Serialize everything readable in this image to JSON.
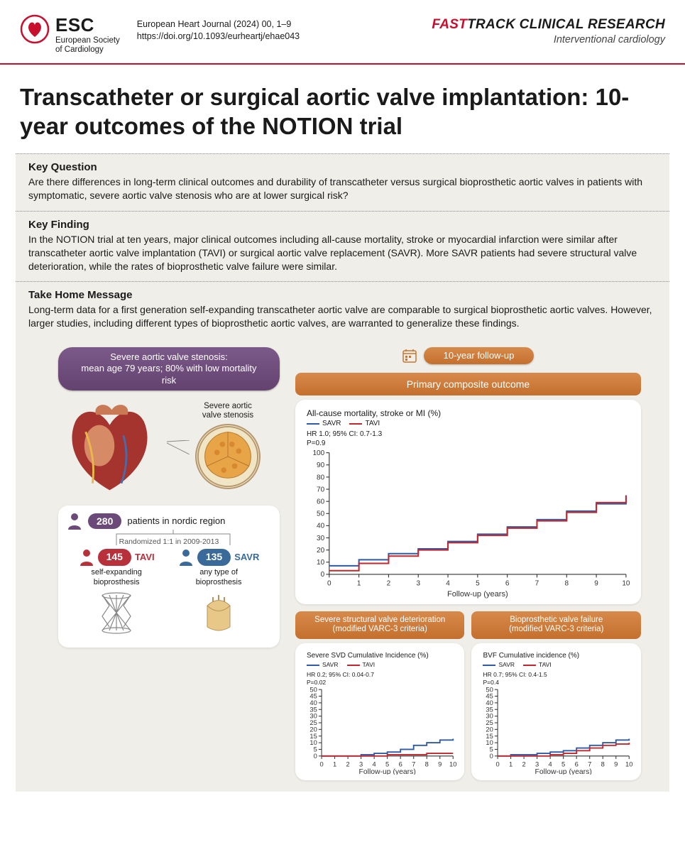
{
  "header": {
    "logo_abbrev": "ESC",
    "logo_sub1": "European Society",
    "logo_sub2": "of Cardiology",
    "journal": "European Heart Journal (2024) 00, 1–9",
    "doi": "https://doi.org/10.1093/eurheartj/ehae043",
    "fasttrack_fast": "FAST",
    "fasttrack_rest": "TRACK CLINICAL RESEARCH",
    "section": "Interventional cardiology"
  },
  "title": "Transcatheter or surgical aortic valve implantation: 10-year outcomes of the NOTION trial",
  "key_question": {
    "heading": "Key Question",
    "text": "Are there differences in long-term clinical outcomes and durability of transcatheter versus surgical bioprosthetic aortic valves in patients with symptomatic, severe aortic valve stenosis who are at lower surgical risk?"
  },
  "key_finding": {
    "heading": "Key Finding",
    "text": "In the NOTION trial at ten years, major clinical outcomes including all-cause mortality, stroke or myocardial infarction were similar after transcatheter aortic valve implantation (TAVI) or surgical aortic valve replacement (SAVR). More SAVR patients had severe structural valve deterioration, while the rates of bioprosthetic valve failure were similar."
  },
  "take_home": {
    "heading": "Take Home Message",
    "text": "Long-term data for a first generation self-expanding transcatheter aortic valve are comparable to surgical bioprosthetic aortic valves. However, larger studies, including different types of bioprosthetic aortic valves, are warranted to generalize these findings."
  },
  "infographic": {
    "population_pill": "Severe aortic valve stenosis:\nmean age 79 years; 80% with low mortality risk",
    "valve_label": "Severe aortic\nvalve stenosis",
    "rand": {
      "total": "280",
      "total_label": "patients in nordic region",
      "scheme": "Randomized 1:1 in 2009-2013",
      "arm1": {
        "n": "145",
        "name": "TAVI",
        "desc": "self-expanding\nbioprosthesis",
        "color": "#b8303a"
      },
      "arm2": {
        "n": "135",
        "name": "SAVR",
        "desc": "any type of\nbioprosthesis",
        "color": "#3a6a9a"
      }
    },
    "followup_pill": "10-year follow-up",
    "primary_pill": "Primary composite outcome",
    "chart_primary": {
      "title": "All-cause mortality, stroke or MI (%)",
      "hr": "HR 1.0; 95% CI: 0.7-1.3",
      "p": "P=0.9",
      "xlabel": "Follow-up (years)",
      "ylim": [
        0,
        100
      ],
      "ytick_step": 10,
      "xlim": [
        0,
        10
      ],
      "xtick_step": 1,
      "savr": [
        7,
        12,
        17,
        21,
        27,
        33,
        39,
        45,
        52,
        58,
        65
      ],
      "tavi": [
        3,
        9,
        15,
        20,
        26,
        32,
        38,
        44,
        51,
        59,
        65
      ],
      "savr_color": "#2e5aa8",
      "tavi_color": "#c1272d",
      "legend_savr": "SAVR",
      "legend_tavi": "TAVI"
    },
    "svd_pill": "Severe structural valve deterioration\n(modified VARC-3 criteria)",
    "bvf_pill": "Bioprosthetic valve failure\n(modified VARC-3 criteria)",
    "chart_svd": {
      "title": "Severe SVD Cumulative Incidence (%)",
      "hr": "HR 0.2; 95% CI: 0.04-0.7",
      "p": "P=0.02",
      "xlabel": "Follow-up (years)",
      "ylim": [
        0,
        50
      ],
      "ytick_step": 5,
      "xlim": [
        0,
        10
      ],
      "xtick_step": 1,
      "savr": [
        0,
        0,
        0,
        1,
        2,
        3,
        5,
        8,
        10,
        12,
        13
      ],
      "tavi": [
        0,
        0,
        0,
        0,
        0,
        1,
        1,
        1,
        2,
        2,
        2
      ]
    },
    "chart_bvf": {
      "title": "BVF Cumulative incidence (%)",
      "hr": "HR 0.7; 95% CI: 0.4-1.5",
      "p": "P=0.4",
      "xlabel": "Follow-up (years)",
      "ylim": [
        0,
        50
      ],
      "ytick_step": 5,
      "xlim": [
        0,
        10
      ],
      "xtick_step": 1,
      "savr": [
        0,
        1,
        1,
        2,
        3,
        4,
        6,
        8,
        10,
        12,
        13
      ],
      "tavi": [
        0,
        0,
        0,
        0,
        1,
        2,
        4,
        6,
        8,
        9,
        10
      ]
    }
  },
  "colors": {
    "esc_red": "#c8102e",
    "beige_bg": "#f0eee8",
    "purple": "#6b4a7a",
    "orange": "#c9752f",
    "savr_blue": "#2e5aa8",
    "tavi_red": "#c1272d"
  }
}
